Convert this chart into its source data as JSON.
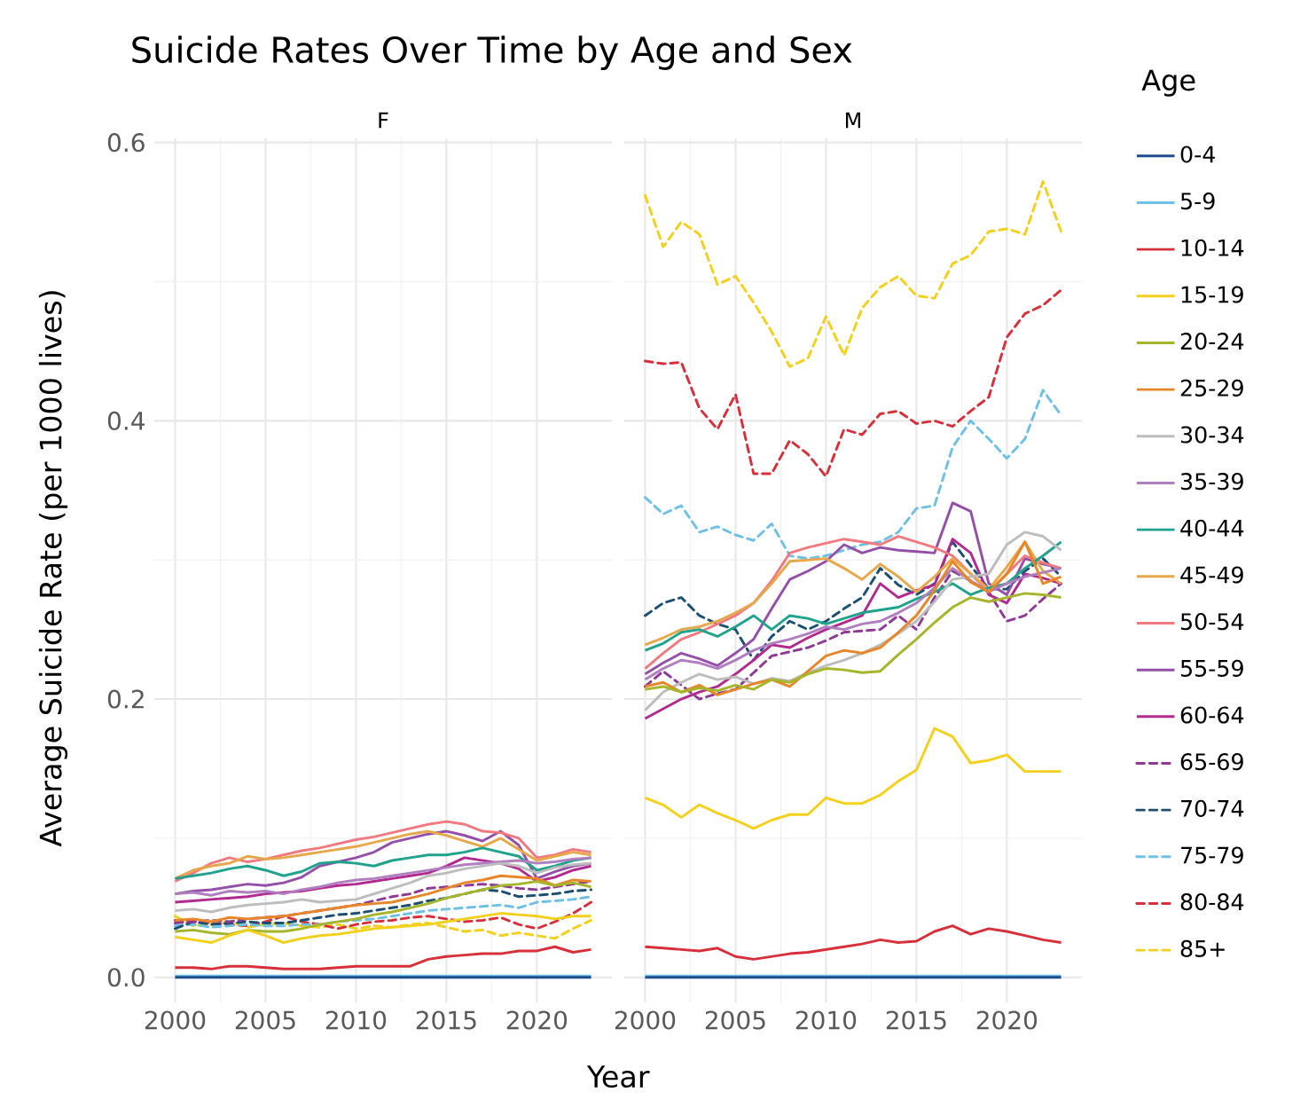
{
  "chart_data": [
    {
      "type": "line",
      "title": "Suicide Rates Over Time by Age and Sex",
      "subtitle": "F",
      "xlabel": "Year",
      "ylabel": "Average Suicide Rate (per 1000 lives)",
      "grid": true,
      "line_style": "solid",
      "xlim": [
        1998.85,
        2024.15
      ],
      "ylim": [
        -0.018,
        0.603
      ],
      "xticks": [
        2000,
        2005,
        2010,
        2015,
        2020
      ],
      "yticks": [
        {
          "value": 0,
          "label": "0.0"
        },
        {
          "value": 0.2,
          "label": "0.2"
        },
        {
          "value": 0.4,
          "label": "0.4"
        },
        {
          "value": 0.6,
          "label": "0.6"
        }
      ],
      "x": [
        2000,
        2001,
        2002,
        2003,
        2004,
        2005,
        2006,
        2007,
        2008,
        2009,
        2010,
        2011,
        2012,
        2013,
        2014,
        2015,
        2016,
        2017,
        2018,
        2019,
        2020,
        2021,
        2022,
        2023
      ],
      "series": [
        {
          "color": "#1f4e8c",
          "values": [
            0,
            0,
            0,
            0,
            0,
            0,
            0,
            0,
            0,
            0,
            0,
            0,
            0,
            0,
            0,
            0,
            0,
            0,
            0,
            0,
            0,
            0,
            0,
            0
          ]
        },
        {
          "color": "#6ec1e4",
          "values": [
            0.001,
            0.001,
            0.001,
            0.001,
            0.001,
            0.001,
            0.001,
            0.001,
            0.001,
            0.001,
            0.001,
            0.001,
            0.001,
            0.001,
            0.001,
            0.001,
            0.001,
            0.001,
            0.001,
            0.001,
            0.001,
            0.001,
            0.001,
            0.001
          ]
        },
        {
          "color": "#d7303b",
          "values": [
            0.007,
            0.007,
            0.006,
            0.008,
            0.008,
            0.007,
            0.006,
            0.006,
            0.006,
            0.007,
            0.008,
            0.008,
            0.008,
            0.008,
            0.013,
            0.015,
            0.016,
            0.017,
            0.017,
            0.019,
            0.019,
            0.022,
            0.018,
            0.02
          ]
        },
        {
          "color": "#f2d01c",
          "values": [
            0.029,
            0.027,
            0.025,
            0.03,
            0.034,
            0.03,
            0.025,
            0.028,
            0.03,
            0.031,
            0.033,
            0.035,
            0.036,
            0.037,
            0.038,
            0.04,
            0.042,
            0.044,
            0.046,
            0.045,
            0.044,
            0.042,
            0.044,
            0.044
          ]
        },
        {
          "color": "#a6b52a",
          "values": [
            0.033,
            0.034,
            0.032,
            0.031,
            0.034,
            0.033,
            0.033,
            0.035,
            0.038,
            0.04,
            0.042,
            0.045,
            0.047,
            0.05,
            0.053,
            0.057,
            0.06,
            0.063,
            0.066,
            0.067,
            0.069,
            0.066,
            0.068,
            0.065
          ]
        },
        {
          "color": "#e8862a",
          "values": [
            0.041,
            0.042,
            0.04,
            0.043,
            0.042,
            0.043,
            0.044,
            0.046,
            0.048,
            0.05,
            0.052,
            0.053,
            0.054,
            0.057,
            0.06,
            0.064,
            0.068,
            0.07,
            0.073,
            0.072,
            0.071,
            0.066,
            0.07,
            0.069
          ]
        },
        {
          "color": "#bdbdbd",
          "values": [
            0.048,
            0.049,
            0.047,
            0.05,
            0.052,
            0.053,
            0.054,
            0.056,
            0.054,
            0.055,
            0.056,
            0.06,
            0.064,
            0.068,
            0.073,
            0.075,
            0.078,
            0.08,
            0.082,
            0.08,
            0.075,
            0.079,
            0.081,
            0.082
          ]
        },
        {
          "color": "#b07fc0",
          "values": [
            0.06,
            0.061,
            0.059,
            0.062,
            0.061,
            0.062,
            0.06,
            0.063,
            0.065,
            0.068,
            0.07,
            0.071,
            0.073,
            0.075,
            0.077,
            0.079,
            0.081,
            0.082,
            0.083,
            0.084,
            0.082,
            0.083,
            0.085,
            0.086
          ]
        },
        {
          "color": "#1fa38c",
          "values": [
            0.071,
            0.073,
            0.075,
            0.078,
            0.08,
            0.077,
            0.073,
            0.076,
            0.082,
            0.083,
            0.082,
            0.08,
            0.084,
            0.086,
            0.088,
            0.088,
            0.09,
            0.093,
            0.09,
            0.087,
            0.077,
            0.08,
            0.084,
            0.086
          ]
        },
        {
          "color": "#e6a84a",
          "values": [
            0.071,
            0.077,
            0.08,
            0.082,
            0.087,
            0.085,
            0.086,
            0.088,
            0.09,
            0.092,
            0.094,
            0.097,
            0.1,
            0.103,
            0.105,
            0.102,
            0.098,
            0.094,
            0.1,
            0.092,
            0.084,
            0.087,
            0.09,
            0.088
          ]
        },
        {
          "color": "#f07a80",
          "values": [
            0.069,
            0.075,
            0.082,
            0.086,
            0.083,
            0.085,
            0.088,
            0.091,
            0.093,
            0.096,
            0.099,
            0.101,
            0.104,
            0.107,
            0.11,
            0.112,
            0.11,
            0.105,
            0.104,
            0.1,
            0.086,
            0.088,
            0.092,
            0.09
          ]
        },
        {
          "color": "#9450a8",
          "values": [
            0.06,
            0.062,
            0.063,
            0.065,
            0.067,
            0.066,
            0.068,
            0.072,
            0.08,
            0.083,
            0.086,
            0.09,
            0.097,
            0.1,
            0.103,
            0.105,
            0.102,
            0.098,
            0.105,
            0.095,
            0.071,
            0.076,
            0.08,
            0.082
          ]
        },
        {
          "color": "#b02a8f",
          "values": [
            0.054,
            0.055,
            0.056,
            0.057,
            0.058,
            0.06,
            0.061,
            0.062,
            0.064,
            0.066,
            0.067,
            0.069,
            0.071,
            0.073,
            0.075,
            0.08,
            0.086,
            0.084,
            0.082,
            0.078,
            0.069,
            0.072,
            0.077,
            0.08
          ]
        },
        {
          "color": "#8e3a94",
          "line_style": "dashed",
          "values": [
            0.039,
            0.04,
            0.041,
            0.04,
            0.042,
            0.043,
            0.044,
            0.046,
            0.048,
            0.05,
            0.052,
            0.055,
            0.058,
            0.06,
            0.064,
            0.065,
            0.066,
            0.067,
            0.066,
            0.064,
            0.063,
            0.065,
            0.067,
            0.069
          ]
        },
        {
          "color": "#1d4f73",
          "line_style": "dashed",
          "values": [
            0.035,
            0.04,
            0.038,
            0.039,
            0.04,
            0.039,
            0.039,
            0.041,
            0.043,
            0.045,
            0.046,
            0.048,
            0.05,
            0.052,
            0.055,
            0.057,
            0.06,
            0.063,
            0.062,
            0.058,
            0.059,
            0.06,
            0.062,
            0.063
          ]
        },
        {
          "color": "#6ec1e4",
          "line_style": "dashed",
          "values": [
            0.037,
            0.038,
            0.036,
            0.037,
            0.038,
            0.037,
            0.037,
            0.038,
            0.038,
            0.04,
            0.041,
            0.042,
            0.044,
            0.046,
            0.048,
            0.049,
            0.05,
            0.051,
            0.052,
            0.05,
            0.054,
            0.055,
            0.056,
            0.058
          ]
        },
        {
          "color": "#d7303b",
          "line_style": "dashed",
          "values": [
            0.041,
            0.04,
            0.039,
            0.038,
            0.037,
            0.04,
            0.044,
            0.04,
            0.038,
            0.035,
            0.038,
            0.04,
            0.041,
            0.043,
            0.044,
            0.042,
            0.04,
            0.041,
            0.043,
            0.038,
            0.035,
            0.04,
            0.046,
            0.054
          ]
        },
        {
          "color": "#f2d01c",
          "line_style": "dashed",
          "values": [
            0.044,
            0.037,
            0.038,
            0.04,
            0.036,
            0.038,
            0.039,
            0.037,
            0.036,
            0.038,
            0.035,
            0.037,
            0.036,
            0.038,
            0.039,
            0.036,
            0.033,
            0.034,
            0.03,
            0.032,
            0.03,
            0.028,
            0.035,
            0.041
          ]
        }
      ]
    },
    {
      "type": "line",
      "subtitle": "M",
      "grid": true,
      "line_style": "solid",
      "legend": "right",
      "legend_title": "Age",
      "tick_labels": "x",
      "xlim": [
        1998.85,
        2024.15
      ],
      "ylim": [
        -0.018,
        0.603
      ],
      "xticks": [
        2000,
        2005,
        2010,
        2015,
        2020
      ],
      "yticks": [
        {
          "value": 0,
          "label": null
        },
        {
          "value": 0.2,
          "label": null
        },
        {
          "value": 0.4,
          "label": null
        },
        {
          "value": 0.6,
          "label": null
        }
      ],
      "x": [
        2000,
        2001,
        2002,
        2003,
        2004,
        2005,
        2006,
        2007,
        2008,
        2009,
        2010,
        2011,
        2012,
        2013,
        2014,
        2015,
        2016,
        2017,
        2018,
        2019,
        2020,
        2021,
        2022,
        2023
      ],
      "series": [
        {
          "name": "0-4",
          "color": "#1f4e8c",
          "values": [
            0,
            0,
            0,
            0,
            0,
            0,
            0,
            0,
            0,
            0,
            0,
            0,
            0,
            0,
            0,
            0,
            0,
            0,
            0,
            0,
            0,
            0,
            0,
            0
          ]
        },
        {
          "name": "5-9",
          "color": "#6ec1e4",
          "values": [
            0.001,
            0.001,
            0.001,
            0.001,
            0.001,
            0.001,
            0.001,
            0.001,
            0.001,
            0.001,
            0.001,
            0.001,
            0.001,
            0.001,
            0.001,
            0.001,
            0.001,
            0.001,
            0.001,
            0.001,
            0.001,
            0.001,
            0.001,
            0.001
          ]
        },
        {
          "name": "10-14",
          "color": "#d7303b",
          "values": [
            0.022,
            0.021,
            0.02,
            0.019,
            0.021,
            0.015,
            0.013,
            0.015,
            0.017,
            0.018,
            0.02,
            0.022,
            0.024,
            0.027,
            0.025,
            0.026,
            0.033,
            0.037,
            0.031,
            0.035,
            0.033,
            0.03,
            0.027,
            0.025
          ]
        },
        {
          "name": "15-19",
          "color": "#f2d01c",
          "values": [
            0.129,
            0.124,
            0.115,
            0.124,
            0.118,
            0.113,
            0.107,
            0.113,
            0.117,
            0.117,
            0.129,
            0.125,
            0.125,
            0.131,
            0.141,
            0.149,
            0.179,
            0.173,
            0.154,
            0.156,
            0.16,
            0.148,
            0.148,
            0.148
          ]
        },
        {
          "name": "20-24",
          "color": "#a6b52a",
          "values": [
            0.207,
            0.209,
            0.205,
            0.208,
            0.206,
            0.21,
            0.207,
            0.214,
            0.212,
            0.218,
            0.222,
            0.221,
            0.219,
            0.22,
            0.232,
            0.243,
            0.255,
            0.266,
            0.273,
            0.27,
            0.273,
            0.276,
            0.275,
            0.273
          ]
        },
        {
          "name": "25-29",
          "color": "#e8862a",
          "values": [
            0.209,
            0.212,
            0.205,
            0.21,
            0.203,
            0.207,
            0.211,
            0.214,
            0.209,
            0.22,
            0.231,
            0.235,
            0.233,
            0.237,
            0.248,
            0.26,
            0.278,
            0.299,
            0.284,
            0.277,
            0.29,
            0.313,
            0.283,
            0.288
          ]
        },
        {
          "name": "30-34",
          "color": "#bdbdbd",
          "values": [
            0.192,
            0.205,
            0.212,
            0.218,
            0.214,
            0.216,
            0.211,
            0.215,
            0.213,
            0.219,
            0.224,
            0.228,
            0.233,
            0.239,
            0.247,
            0.256,
            0.27,
            0.286,
            0.288,
            0.29,
            0.311,
            0.32,
            0.317,
            0.307
          ]
        },
        {
          "name": "35-39",
          "color": "#b07fc0",
          "values": [
            0.214,
            0.222,
            0.228,
            0.226,
            0.222,
            0.228,
            0.235,
            0.24,
            0.243,
            0.247,
            0.252,
            0.25,
            0.254,
            0.256,
            0.262,
            0.269,
            0.28,
            0.294,
            0.285,
            0.277,
            0.283,
            0.288,
            0.291,
            0.294
          ]
        },
        {
          "name": "40-44",
          "color": "#1fa38c",
          "values": [
            0.235,
            0.24,
            0.248,
            0.25,
            0.245,
            0.252,
            0.26,
            0.25,
            0.26,
            0.258,
            0.254,
            0.258,
            0.262,
            0.264,
            0.266,
            0.272,
            0.277,
            0.283,
            0.275,
            0.28,
            0.283,
            0.294,
            0.303,
            0.313
          ]
        },
        {
          "name": "45-49",
          "color": "#e6a84a",
          "values": [
            0.239,
            0.244,
            0.25,
            0.252,
            0.256,
            0.262,
            0.269,
            0.283,
            0.299,
            0.3,
            0.301,
            0.294,
            0.286,
            0.297,
            0.288,
            0.277,
            0.288,
            0.301,
            0.29,
            0.279,
            0.295,
            0.313,
            0.292,
            0.283
          ]
        },
        {
          "name": "50-54",
          "color": "#f07a80",
          "values": [
            0.222,
            0.233,
            0.243,
            0.248,
            0.254,
            0.26,
            0.269,
            0.285,
            0.305,
            0.309,
            0.312,
            0.315,
            0.313,
            0.311,
            0.317,
            0.313,
            0.309,
            0.303,
            0.29,
            0.277,
            0.29,
            0.303,
            0.298,
            0.294
          ]
        },
        {
          "name": "55-59",
          "color": "#9450a8",
          "values": [
            0.218,
            0.226,
            0.233,
            0.229,
            0.224,
            0.233,
            0.243,
            0.265,
            0.286,
            0.292,
            0.299,
            0.311,
            0.305,
            0.309,
            0.307,
            0.306,
            0.305,
            0.341,
            0.335,
            0.283,
            0.275,
            0.301,
            0.297,
            0.294
          ]
        },
        {
          "name": "60-64",
          "color": "#b02a8f",
          "values": [
            0.186,
            0.193,
            0.2,
            0.205,
            0.209,
            0.218,
            0.228,
            0.239,
            0.237,
            0.244,
            0.25,
            0.255,
            0.26,
            0.283,
            0.273,
            0.278,
            0.282,
            0.315,
            0.305,
            0.275,
            0.269,
            0.29,
            0.287,
            0.283
          ]
        },
        {
          "name": "65-69",
          "color": "#8e3a94",
          "line_style": "dashed",
          "values": [
            0.209,
            0.22,
            0.21,
            0.2,
            0.204,
            0.207,
            0.219,
            0.231,
            0.234,
            0.237,
            0.242,
            0.248,
            0.249,
            0.25,
            0.26,
            0.25,
            0.273,
            0.292,
            0.285,
            0.277,
            0.256,
            0.26,
            0.272,
            0.283
          ]
        },
        {
          "name": "70-74",
          "color": "#1d4f73",
          "line_style": "dashed",
          "values": [
            0.26,
            0.269,
            0.273,
            0.26,
            0.254,
            0.25,
            0.228,
            0.245,
            0.256,
            0.25,
            0.256,
            0.265,
            0.273,
            0.294,
            0.282,
            0.275,
            0.283,
            0.313,
            0.296,
            0.279,
            0.279,
            0.292,
            0.301,
            0.288
          ]
        },
        {
          "name": "75-79",
          "color": "#6ec1e4",
          "line_style": "dashed",
          "values": [
            0.345,
            0.333,
            0.339,
            0.32,
            0.324,
            0.318,
            0.314,
            0.326,
            0.303,
            0.301,
            0.303,
            0.307,
            0.311,
            0.313,
            0.32,
            0.337,
            0.339,
            0.381,
            0.4,
            0.387,
            0.373,
            0.387,
            0.422,
            0.404
          ]
        },
        {
          "name": "80-84",
          "color": "#d7303b",
          "line_style": "dashed",
          "values": [
            0.443,
            0.441,
            0.442,
            0.409,
            0.394,
            0.419,
            0.362,
            0.362,
            0.386,
            0.376,
            0.36,
            0.394,
            0.39,
            0.405,
            0.407,
            0.398,
            0.4,
            0.396,
            0.407,
            0.417,
            0.46,
            0.477,
            0.483,
            0.494
          ]
        },
        {
          "name": "85+",
          "color": "#f2d01c",
          "line_style": "dashed",
          "values": [
            0.562,
            0.525,
            0.543,
            0.534,
            0.498,
            0.504,
            0.485,
            0.464,
            0.439,
            0.445,
            0.475,
            0.447,
            0.481,
            0.496,
            0.504,
            0.49,
            0.488,
            0.513,
            0.519,
            0.536,
            0.538,
            0.534,
            0.572,
            0.536
          ]
        }
      ]
    }
  ]
}
